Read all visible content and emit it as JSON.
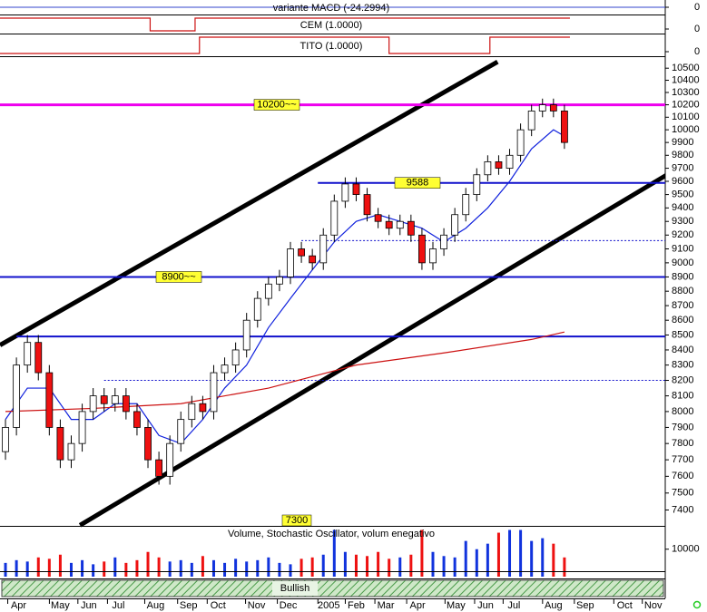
{
  "chart_data": {
    "type": "candlestick",
    "log_scale": true,
    "x": [
      0,
      1,
      2,
      3,
      4,
      5,
      6,
      7,
      8,
      9,
      10,
      11,
      12,
      13,
      14,
      15,
      16,
      17,
      18,
      19,
      20,
      21,
      22,
      23,
      24,
      25,
      26,
      27,
      28,
      29,
      30,
      31,
      32,
      33,
      34,
      35,
      36,
      37,
      38,
      39,
      40,
      41,
      42,
      43,
      44,
      45,
      46,
      47,
      48,
      49,
      50,
      51
    ],
    "open": [
      7750,
      7900,
      8300,
      8450,
      8250,
      7900,
      7700,
      7800,
      8000,
      8100,
      8050,
      8100,
      8000,
      7900,
      7700,
      7600,
      7800,
      7950,
      8050,
      8000,
      8250,
      8300,
      8400,
      8600,
      8750,
      8850,
      8900,
      9100,
      9050,
      9000,
      9200,
      9450,
      9580,
      9500,
      9350,
      9300,
      9250,
      9300,
      9200,
      9000,
      9100,
      9200,
      9350,
      9500,
      9650,
      9750,
      9700,
      9800,
      10000,
      10150,
      10200,
      10150
    ],
    "high": [
      7950,
      8350,
      8500,
      8500,
      8300,
      7950,
      7850,
      8050,
      8150,
      8150,
      8150,
      8150,
      8050,
      7950,
      7750,
      7850,
      8000,
      8100,
      8100,
      8300,
      8350,
      8450,
      8650,
      8800,
      8900,
      8950,
      9150,
      9150,
      9100,
      9250,
      9500,
      9630,
      9630,
      9550,
      9400,
      9350,
      9350,
      9350,
      9250,
      9150,
      9250,
      9400,
      9550,
      9700,
      9800,
      9800,
      9850,
      10050,
      10200,
      10250,
      10250,
      10200
    ],
    "low": [
      7700,
      7850,
      8250,
      8200,
      7850,
      7650,
      7650,
      7750,
      7950,
      8000,
      8000,
      7950,
      7850,
      7650,
      7550,
      7550,
      7750,
      7900,
      7950,
      7950,
      8200,
      8250,
      8350,
      8550,
      8700,
      8800,
      8850,
      9000,
      8950,
      8950,
      9150,
      9400,
      9450,
      9300,
      9250,
      9200,
      9200,
      9150,
      8950,
      8950,
      9050,
      9150,
      9300,
      9450,
      9600,
      9650,
      9650,
      9750,
      9950,
      10100,
      10100,
      9850
    ],
    "close": [
      7900,
      8300,
      8450,
      8250,
      7900,
      7700,
      7800,
      8000,
      8100,
      8050,
      8100,
      8000,
      7900,
      7700,
      7600,
      7800,
      7950,
      8050,
      8000,
      8250,
      8300,
      8400,
      8600,
      8750,
      8850,
      8900,
      9100,
      9050,
      9000,
      9200,
      9450,
      9580,
      9500,
      9350,
      9300,
      9250,
      9300,
      9200,
      9000,
      9100,
      9200,
      9350,
      9500,
      9650,
      9750,
      9700,
      9800,
      10000,
      10150,
      10200,
      10150,
      9900
    ],
    "up_color": "#ffffff",
    "down_color": "#ee1111",
    "xlim": [
      -0.5,
      60.2
    ],
    "ylim": [
      7250,
      10600
    ],
    "yticks": [
      7400,
      7500,
      7600,
      7700,
      7800,
      7900,
      8000,
      8100,
      8200,
      8300,
      8400,
      8500,
      8600,
      8700,
      8800,
      8900,
      9000,
      9100,
      9200,
      9300,
      9400,
      9500,
      9600,
      9700,
      9800,
      9900,
      10000,
      10100,
      10200,
      10300,
      10400,
      10500
    ],
    "xticks": [
      {
        "value": 1.2,
        "label": "Apr"
      },
      {
        "value": 5,
        "label": "May"
      },
      {
        "value": 7.6,
        "label": "Jun"
      },
      {
        "value": 10.3,
        "label": "Jul"
      },
      {
        "value": 13.7,
        "label": "Aug"
      },
      {
        "value": 16.7,
        "label": "Sep"
      },
      {
        "value": 19.4,
        "label": "Oct"
      },
      {
        "value": 22.9,
        "label": "Nov"
      },
      {
        "value": 25.8,
        "label": "Dec"
      },
      {
        "value": 29.5,
        "label": "2005"
      },
      {
        "value": 32,
        "label": "Feb"
      },
      {
        "value": 34.7,
        "label": "Mar"
      },
      {
        "value": 37.6,
        "label": "Apr"
      },
      {
        "value": 41.1,
        "label": "May"
      },
      {
        "value": 43.8,
        "label": "Jun"
      },
      {
        "value": 46.4,
        "label": "Jul"
      },
      {
        "value": 50,
        "label": "Aug"
      },
      {
        "value": 52.9,
        "label": "Sep"
      },
      {
        "value": 56.5,
        "label": "Oct"
      },
      {
        "value": 59.1,
        "label": "Nov"
      }
    ],
    "series": [
      {
        "color": "#1122dd",
        "x": [
          0,
          2,
          4,
          6,
          8,
          10,
          12,
          14,
          16,
          18,
          20,
          22,
          24,
          26,
          28,
          30,
          32,
          34,
          36,
          38,
          40,
          42,
          44,
          46,
          48,
          50,
          51
        ],
        "values": [
          7950,
          8150,
          8150,
          7950,
          7950,
          8050,
          8050,
          7850,
          7800,
          7950,
          8150,
          8300,
          8550,
          8750,
          8950,
          9150,
          9300,
          9350,
          9300,
          9250,
          9150,
          9250,
          9400,
          9600,
          9850,
          10000,
          9950
        ]
      },
      {
        "color": "#cc1111",
        "x": [
          0,
          8,
          16,
          24,
          32,
          40,
          48,
          51
        ],
        "values": [
          8000,
          8020,
          8050,
          8150,
          8300,
          8380,
          8470,
          8520
        ]
      }
    ],
    "levels": [
      {
        "value": 10200,
        "label": "10200~~",
        "color": "#ee00ee",
        "start": -0.5,
        "dashed": false
      },
      {
        "value": 9588,
        "color": "#1111cc",
        "start": 28.5,
        "dashed": false
      },
      {
        "value": 9160,
        "color": "#1111cc",
        "start": 27,
        "dashed": true
      },
      {
        "value": 8900,
        "label": "8900~~",
        "color": "#1111cc",
        "start": -0.5,
        "dashed": false
      },
      {
        "value": 8490,
        "color": "#1111cc",
        "start": 1,
        "dashed": false
      },
      {
        "value": 8200,
        "color": "#1111cc",
        "start": 9,
        "dashed": true
      }
    ],
    "trendlines": [
      {
        "color": "#000000",
        "x": [
          -0.5,
          44.9
        ],
        "values": [
          8432,
          10553
        ]
      },
      {
        "color": "#000000",
        "x": [
          6.8,
          62.4
        ],
        "values": [
          7311,
          9753
        ]
      }
    ],
    "floor_label": {
      "value": 7300
    },
    "indicators": [
      {
        "title": "variante MACD (-24.2994)",
        "ylim": [
          -1,
          1
        ],
        "yticks": [
          0
        ]
      },
      {
        "title": "CEM (1.0000)",
        "ylim": [
          0,
          1
        ],
        "yticks": [
          0
        ],
        "color": "#cc1111",
        "x": [
          -0.5,
          13.2,
          17.3,
          51.5
        ],
        "values": [
          1,
          0,
          1,
          1
        ]
      },
      {
        "title": "TITO (1.0000)",
        "ylim": [
          0,
          1
        ],
        "yticks": [
          0
        ],
        "color": "#cc1111",
        "x": [
          -0.5,
          17.7,
          35,
          44.2,
          51.5
        ],
        "values": [
          0,
          1,
          0,
          1,
          1
        ]
      }
    ],
    "volume": {
      "title": "Volume, Stochastic Oscillator, volum enegativo",
      "ylim": [
        0,
        17500
      ],
      "yticks": [
        10000
      ],
      "values": [
        5000,
        6000,
        5500,
        7000,
        6500,
        8000,
        5000,
        6000,
        4500,
        5500,
        7000,
        5000,
        6000,
        9000,
        7000,
        5500,
        6000,
        5000,
        7500,
        6000,
        5000,
        6500,
        5500,
        6000,
        7000,
        5000,
        4500,
        6500,
        7000,
        8000,
        17000,
        9000,
        8000,
        7500,
        9000,
        6500,
        7000,
        8000,
        17000,
        9000,
        7500,
        7000,
        13000,
        10000,
        12000,
        16000,
        17000,
        17000,
        13000,
        14000,
        12000,
        7000
      ],
      "up_color": "#1133dd",
      "down_color": "#ee1111"
    },
    "signal": "Bullish"
  }
}
